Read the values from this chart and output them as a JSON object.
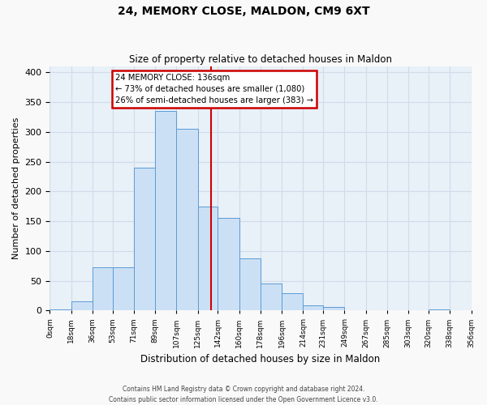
{
  "title": "24, MEMORY CLOSE, MALDON, CM9 6XT",
  "subtitle": "Size of property relative to detached houses in Maldon",
  "xlabel": "Distribution of detached houses by size in Maldon",
  "ylabel": "Number of detached properties",
  "bin_labels": [
    "0sqm",
    "18sqm",
    "36sqm",
    "53sqm",
    "71sqm",
    "89sqm",
    "107sqm",
    "125sqm",
    "142sqm",
    "160sqm",
    "178sqm",
    "196sqm",
    "214sqm",
    "231sqm",
    "249sqm",
    "267sqm",
    "285sqm",
    "303sqm",
    "320sqm",
    "338sqm",
    "356sqm"
  ],
  "bar_values": [
    2,
    15,
    72,
    72,
    240,
    335,
    305,
    175,
    155,
    87,
    45,
    29,
    8,
    6,
    0,
    0,
    0,
    0,
    2,
    0
  ],
  "bin_edges": [
    0,
    18,
    36,
    53,
    71,
    89,
    107,
    125,
    142,
    160,
    178,
    196,
    214,
    231,
    249,
    267,
    285,
    303,
    320,
    338,
    356
  ],
  "bar_color": "#cce0f5",
  "bar_edge_color": "#5b9bd5",
  "reference_line_x": 136,
  "annotation_title": "24 MEMORY CLOSE: 136sqm",
  "annotation_line1": "← 73% of detached houses are smaller (1,080)",
  "annotation_line2": "26% of semi-detached houses are larger (383) →",
  "annotation_box_color": "#cc0000",
  "ylim": [
    0,
    410
  ],
  "grid_color": "#d0dce8",
  "background_color": "#e8f0f8",
  "fig_background": "#f9f9f9",
  "footer1": "Contains HM Land Registry data © Crown copyright and database right 2024.",
  "footer2": "Contains public sector information licensed under the Open Government Licence v3.0."
}
